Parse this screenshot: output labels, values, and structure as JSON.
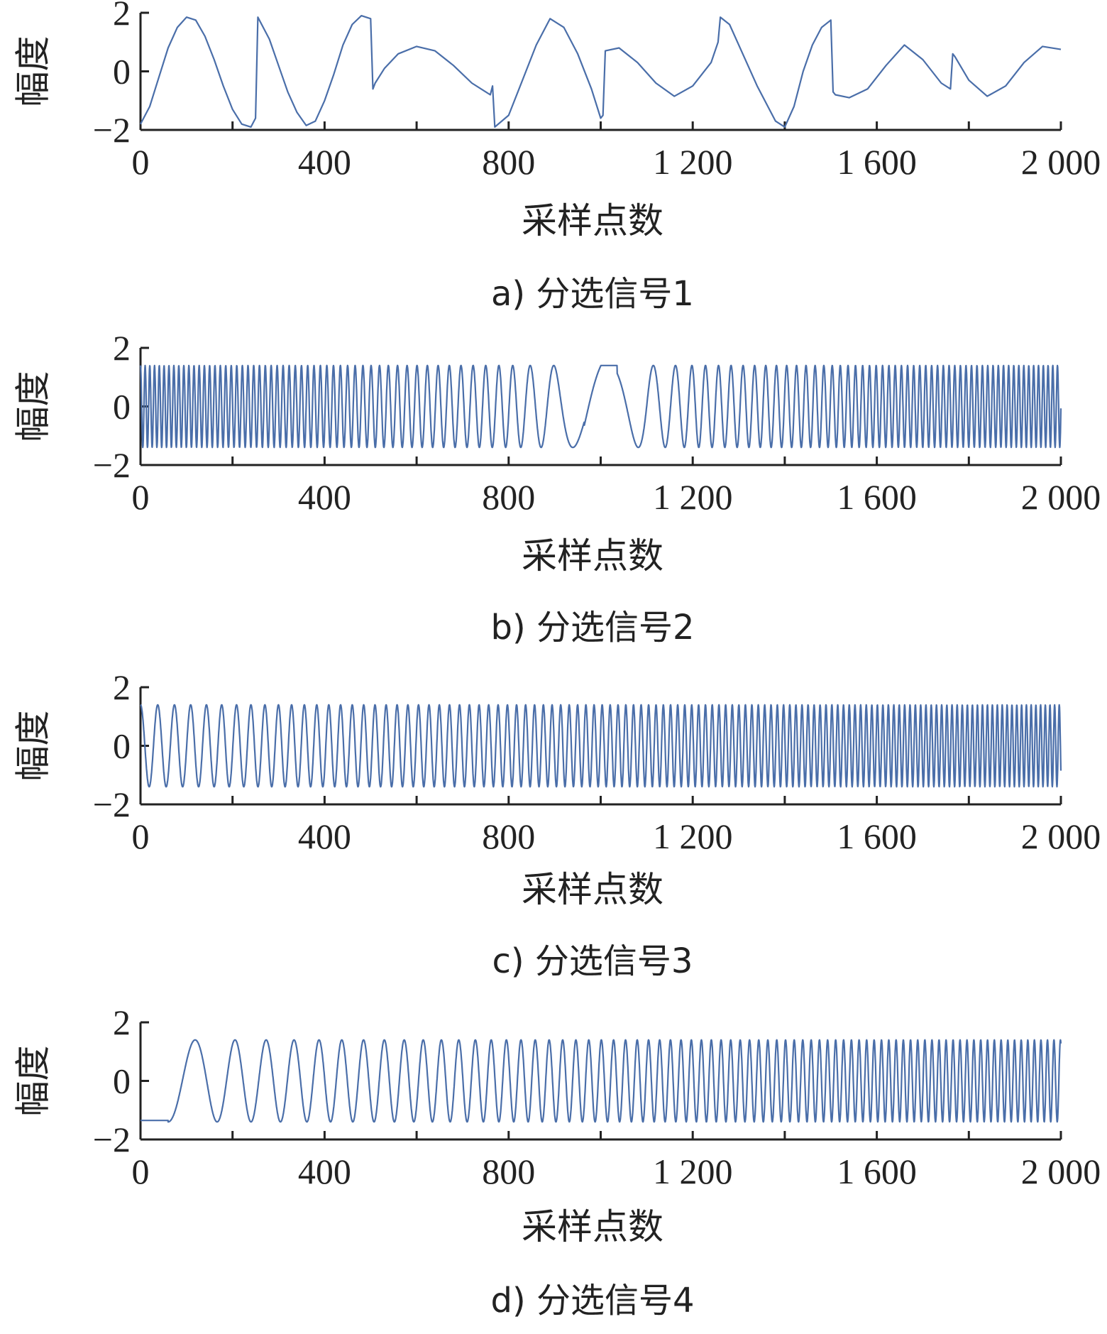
{
  "chart_data": [
    {
      "type": "line",
      "caption": "a) 分选信号1",
      "xlabel": "采样点数",
      "ylabel": "幅度",
      "xlim": [
        0,
        2000
      ],
      "ylim": [
        -2,
        2
      ],
      "xticks": [
        0,
        400,
        800,
        1200,
        1600,
        2000
      ],
      "xtick_labels": [
        "0",
        "400",
        "800",
        "1 200",
        "1 600",
        "2 000"
      ],
      "yticks": [
        -2,
        0,
        2
      ],
      "ytick_labels": [
        "−2",
        "0",
        "2"
      ],
      "series": [
        {
          "color": "#4a6ea9",
          "x": [
            0,
            20,
            40,
            60,
            80,
            100,
            120,
            140,
            160,
            180,
            200,
            220,
            240,
            250,
            255,
            260,
            280,
            300,
            320,
            340,
            360,
            380,
            400,
            420,
            440,
            460,
            480,
            500,
            505,
            510,
            530,
            560,
            600,
            640,
            680,
            720,
            760,
            765,
            770,
            800,
            830,
            860,
            890,
            920,
            950,
            980,
            1000,
            1005,
            1010,
            1040,
            1080,
            1120,
            1160,
            1200,
            1240,
            1255,
            1260,
            1280,
            1300,
            1340,
            1380,
            1400,
            1420,
            1440,
            1460,
            1480,
            1500,
            1505,
            1510,
            1540,
            1580,
            1620,
            1660,
            1700,
            1740,
            1760,
            1765,
            1770,
            1800,
            1840,
            1880,
            1920,
            1960,
            2000
          ],
          "y": [
            -1.8,
            -1.2,
            -0.2,
            0.8,
            1.5,
            1.85,
            1.75,
            1.2,
            0.4,
            -0.5,
            -1.3,
            -1.8,
            -1.9,
            -1.6,
            1.85,
            1.7,
            1.1,
            0.2,
            -0.7,
            -1.4,
            -1.85,
            -1.7,
            -1.0,
            -0.1,
            0.9,
            1.6,
            1.9,
            1.8,
            -0.6,
            -0.4,
            0.1,
            0.6,
            0.85,
            0.7,
            0.2,
            -0.4,
            -0.8,
            -0.5,
            -1.9,
            -1.5,
            -0.3,
            0.9,
            1.8,
            1.5,
            0.6,
            -0.6,
            -1.6,
            -1.5,
            0.7,
            0.8,
            0.3,
            -0.4,
            -0.85,
            -0.5,
            0.3,
            1.0,
            1.85,
            1.6,
            0.9,
            -0.5,
            -1.7,
            -1.9,
            -1.2,
            0.0,
            0.9,
            1.5,
            1.75,
            -0.7,
            -0.8,
            -0.9,
            -0.6,
            0.2,
            0.9,
            0.4,
            -0.4,
            -0.6,
            0.6,
            0.5,
            -0.3,
            -0.85,
            -0.5,
            0.3,
            0.85,
            0.75
          ]
        }
      ]
    },
    {
      "type": "line",
      "caption": "b) 分选信号2",
      "xlabel": "采样点数",
      "ylabel": "幅度",
      "xlim": [
        0,
        2000
      ],
      "ylim": [
        -2,
        2
      ],
      "xticks": [
        0,
        400,
        800,
        1200,
        1600,
        2000
      ],
      "xtick_labels": [
        "0",
        "400",
        "800",
        "1 200",
        "1 600",
        "2 000"
      ],
      "yticks": [
        -2,
        0,
        2
      ],
      "ytick_labels": [
        "−2",
        "0",
        "2"
      ],
      "series": [
        {
          "color": "#4a6ea9",
          "description_of_shape": "chirp sine, amplitude 1.4, fast at ends, slow near 1000",
          "amplitude": 1.4,
          "period_x": [
            0,
            400,
            800,
            900,
            1000,
            1100,
            1200,
            1600,
            2000
          ],
          "period_y": [
            10,
            14,
            30,
            60,
            200,
            60,
            30,
            14,
            10
          ]
        }
      ]
    },
    {
      "type": "line",
      "caption": "c) 分选信号3",
      "xlabel": "采样点数",
      "ylabel": "幅度",
      "xlim": [
        0,
        2000
      ],
      "ylim": [
        -2,
        2
      ],
      "xticks": [
        0,
        400,
        800,
        1200,
        1600,
        2000
      ],
      "xtick_labels": [
        "0",
        "400",
        "800",
        "1 200",
        "1 600",
        "2 000"
      ],
      "yticks": [
        -2,
        0,
        2
      ],
      "ytick_labels": [
        "−2",
        "0",
        "2"
      ],
      "series": [
        {
          "color": "#4a6ea9",
          "amplitude": 1.4,
          "period_x": [
            0,
            200,
            400,
            800,
            1200,
            1600,
            2000
          ],
          "period_y": [
            38,
            32,
            26,
            20,
            15,
            12,
            10
          ]
        }
      ]
    },
    {
      "type": "line",
      "caption": "d) 分选信号4",
      "xlabel": "采样点数",
      "ylabel": "幅度",
      "xlim": [
        0,
        2000
      ],
      "ylim": [
        -2,
        2
      ],
      "xticks": [
        0,
        400,
        800,
        1200,
        1600,
        2000
      ],
      "xtick_labels": [
        "0",
        "400",
        "800",
        "1 200",
        "1 600",
        "2 000"
      ],
      "yticks": [
        -2,
        0,
        2
      ],
      "ytick_labels": [
        "−2",
        "0",
        "2"
      ],
      "series": [
        {
          "color": "#4a6ea9",
          "amplitude": 1.4,
          "start_x": 60,
          "initial_value": -1.35,
          "period_x": [
            60,
            200,
            400,
            800,
            1200,
            1600,
            2000
          ],
          "period_y": [
            130,
            72,
            50,
            32,
            22,
            16,
            14
          ]
        }
      ]
    }
  ]
}
